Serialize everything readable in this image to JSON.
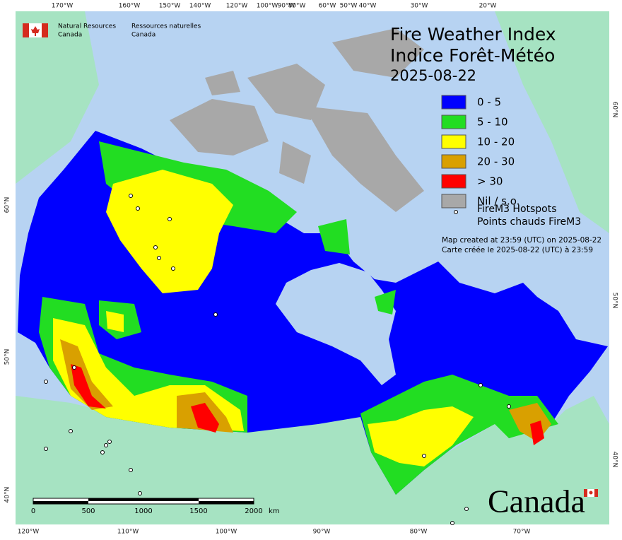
{
  "header": {
    "org_en": [
      "Natural Resources",
      "Canada"
    ],
    "org_fr": [
      "Ressources naturelles",
      "Canada"
    ]
  },
  "title": [
    "Fire Weather Index",
    "Indice Forêt-Météo"
  ],
  "date": "2025-08-22",
  "legend": [
    {
      "label": "0 - 5",
      "color": "#0000ff"
    },
    {
      "label": "5 - 10",
      "color": "#22dd22"
    },
    {
      "label": "10 - 20",
      "color": "#ffff00"
    },
    {
      "label": "20 - 30",
      "color": "#d9a000"
    },
    {
      "label": "> 30",
      "color": "#ff0000"
    },
    {
      "label": "Nil / s.o.",
      "color": "#a8a8a8"
    }
  ],
  "hotspots": [
    "FireM3 Hotspots",
    "Points chauds FireM3"
  ],
  "notes": [
    "Map created at 23:59 (UTC) on 2025-08-22",
    "Carte créée le 2025-08-22 (UTC) à 23:59"
  ],
  "graticule": {
    "top": [
      "170°W",
      "160°W",
      "150°W",
      "140°W",
      "120°W",
      "100°W",
      "90°W",
      "80°W",
      "60°W",
      "50°W",
      "40°W",
      "30°W",
      "20°W"
    ],
    "bottom": [
      "120°W",
      "110°W",
      "100°W",
      "90°W",
      "80°W",
      "70°W"
    ],
    "left": [
      "60°N",
      "50°N",
      "40°N"
    ],
    "right": [
      "60°N",
      "50°N",
      "40°N"
    ]
  },
  "scale_bar": {
    "labels": [
      "0",
      "500",
      "1000",
      "1500",
      "2000"
    ],
    "unit": "km"
  },
  "wordmark": "Canada"
}
